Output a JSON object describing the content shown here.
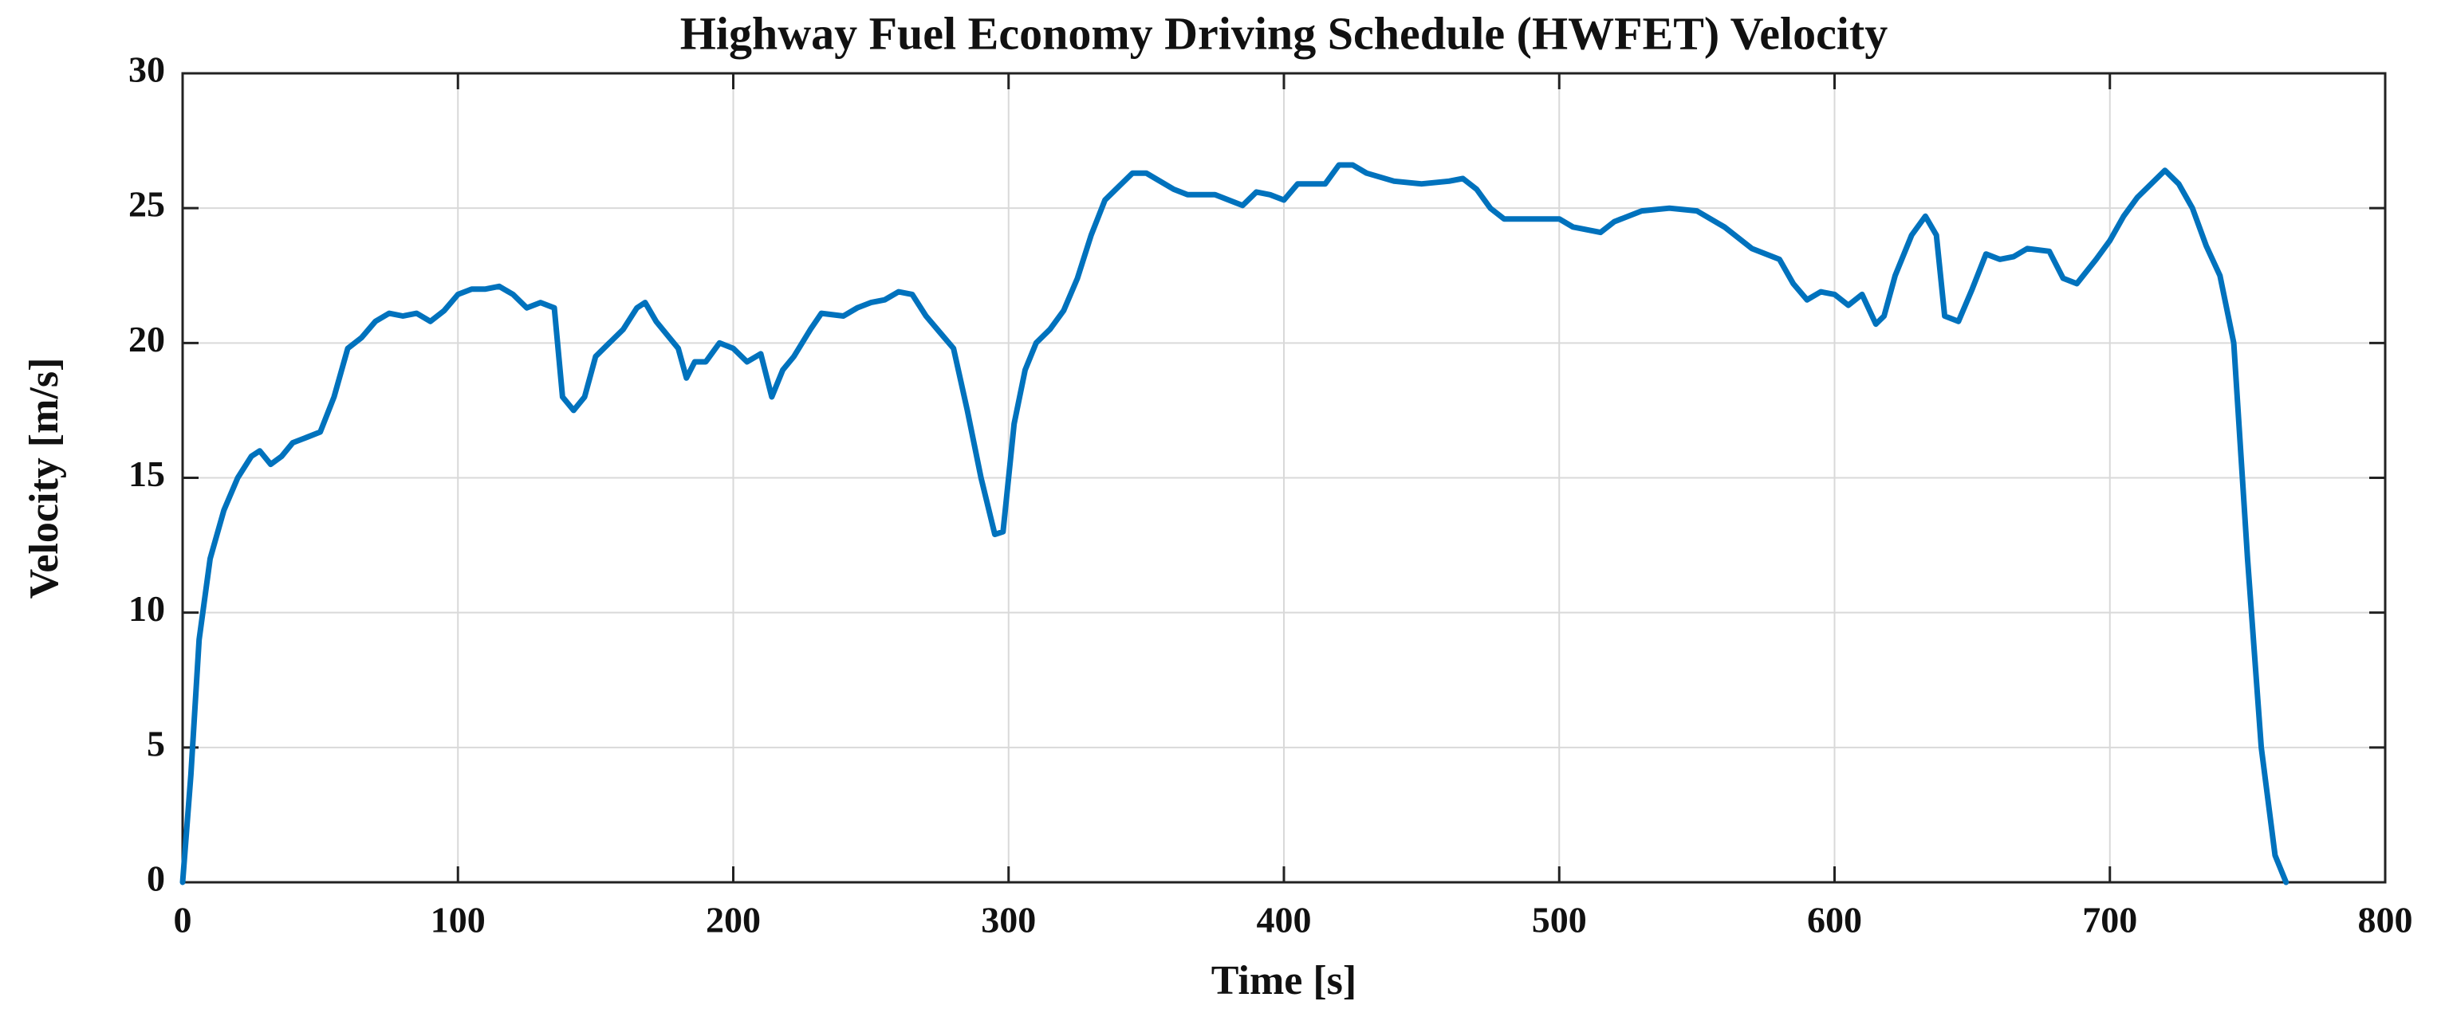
{
  "chart_data": {
    "type": "line",
    "title": "Highway Fuel Economy Driving Schedule (HWFET) Velocity",
    "xlabel": "Time [s]",
    "ylabel": "Velocity [m/s]",
    "x": [
      0,
      3,
      6,
      10,
      15,
      20,
      25,
      28,
      32,
      36,
      40,
      45,
      50,
      55,
      60,
      65,
      70,
      75,
      80,
      85,
      90,
      95,
      100,
      105,
      110,
      115,
      120,
      125,
      130,
      135,
      138,
      142,
      146,
      150,
      155,
      160,
      165,
      168,
      172,
      176,
      180,
      183,
      186,
      190,
      195,
      200,
      205,
      210,
      214,
      218,
      222,
      228,
      232,
      240,
      245,
      250,
      255,
      260,
      265,
      270,
      275,
      280,
      285,
      290,
      295,
      298,
      302,
      306,
      310,
      315,
      320,
      325,
      330,
      335,
      340,
      345,
      350,
      355,
      360,
      365,
      375,
      385,
      390,
      395,
      400,
      405,
      410,
      415,
      420,
      425,
      430,
      440,
      450,
      460,
      465,
      470,
      475,
      480,
      490,
      500,
      505,
      515,
      520,
      530,
      540,
      550,
      560,
      570,
      580,
      585,
      590,
      595,
      600,
      605,
      610,
      615,
      618,
      622,
      628,
      633,
      637,
      640,
      645,
      650,
      655,
      660,
      665,
      670,
      678,
      683,
      688,
      695,
      700,
      705,
      710,
      715,
      720,
      725,
      730,
      735,
      740,
      745,
      750,
      755,
      760,
      764
    ],
    "series": [
      {
        "name": "Velocity",
        "color": "#0072bd",
        "values": [
          0,
          4,
          9,
          12,
          13.8,
          15,
          15.8,
          16,
          15.5,
          15.8,
          16.3,
          16.5,
          16.7,
          18,
          19.8,
          20.2,
          20.8,
          21.1,
          21,
          21.1,
          20.8,
          21.2,
          21.8,
          22,
          22,
          22.1,
          21.8,
          21.3,
          21.5,
          21.3,
          18,
          17.5,
          18,
          19.5,
          20,
          20.5,
          21.3,
          21.5,
          20.8,
          20.3,
          19.8,
          18.7,
          19.3,
          19.3,
          20,
          19.8,
          19.3,
          19.6,
          18,
          19,
          19.5,
          20.5,
          21.1,
          21,
          21.3,
          21.5,
          21.6,
          21.9,
          21.8,
          21,
          20.4,
          19.8,
          17.5,
          15,
          12.9,
          13,
          17,
          19,
          20,
          20.5,
          21.2,
          22.4,
          24,
          25.3,
          25.8,
          26.3,
          26.3,
          26,
          25.7,
          25.5,
          25.5,
          25.1,
          25.6,
          25.5,
          25.3,
          25.9,
          25.9,
          25.9,
          26.6,
          26.6,
          26.3,
          26,
          25.9,
          26,
          26.1,
          25.7,
          25,
          24.6,
          24.6,
          24.6,
          24.3,
          24.1,
          24.5,
          24.9,
          25,
          24.9,
          24.3,
          23.5,
          23.1,
          22.2,
          21.6,
          21.9,
          21.8,
          21.4,
          21.8,
          20.7,
          21,
          22.5,
          24,
          24.7,
          24,
          21,
          20.8,
          22,
          23.3,
          23.1,
          23.2,
          23.5,
          23.4,
          22.4,
          22.2,
          23.1,
          23.8,
          24.7,
          25.4,
          25.9,
          26.4,
          25.9,
          25,
          23.6,
          22.5,
          20,
          12,
          5,
          1,
          0
        ]
      }
    ],
    "xlim": [
      0,
      800
    ],
    "xticks": [
      0,
      100,
      200,
      300,
      400,
      500,
      600,
      700,
      800
    ],
    "ylim": [
      0,
      30
    ],
    "yticks": [
      0,
      5,
      10,
      15,
      20,
      25,
      30
    ],
    "grid": true
  }
}
